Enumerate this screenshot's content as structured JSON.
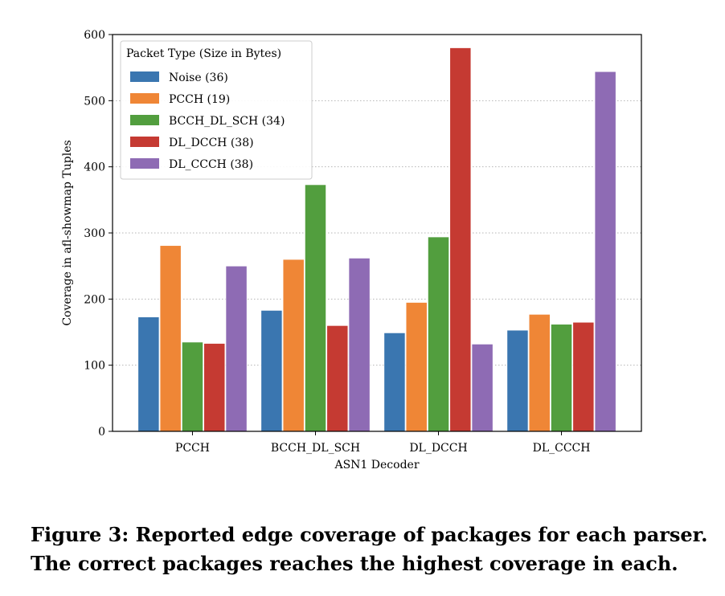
{
  "chart_data": {
    "type": "bar",
    "title": "",
    "xlabel": "ASN1 Decoder",
    "ylabel": "Coverage in afl-showmap Tuples",
    "ylim": [
      0,
      600
    ],
    "yticks": [
      0,
      100,
      200,
      300,
      400,
      500,
      600
    ],
    "grid": true,
    "legend_title": "Packet Type (Size in Bytes)",
    "legend_position": "top-left",
    "categories": [
      "PCCH",
      "BCCH_DL_SCH",
      "DL_DCCH",
      "DL_CCCH"
    ],
    "series": [
      {
        "name": "Noise (36)",
        "color": "#3a76b0",
        "values": [
          173,
          183,
          149,
          153
        ]
      },
      {
        "name": "PCCH (19)",
        "color": "#ef8636",
        "values": [
          281,
          260,
          195,
          177
        ]
      },
      {
        "name": "BCCH_DL_SCH (34)",
        "color": "#529e3e",
        "values": [
          135,
          373,
          294,
          162
        ]
      },
      {
        "name": "DL_DCCH (38)",
        "color": "#c53a32",
        "values": [
          133,
          160,
          580,
          165
        ]
      },
      {
        "name": "DL_CCCH (38)",
        "color": "#8e6bb4",
        "values": [
          250,
          262,
          132,
          544
        ]
      }
    ]
  },
  "caption": {
    "line1": "Figure 3: Reported edge coverage of packages for each parser.",
    "line2": "The correct packages reaches the highest coverage in each."
  }
}
